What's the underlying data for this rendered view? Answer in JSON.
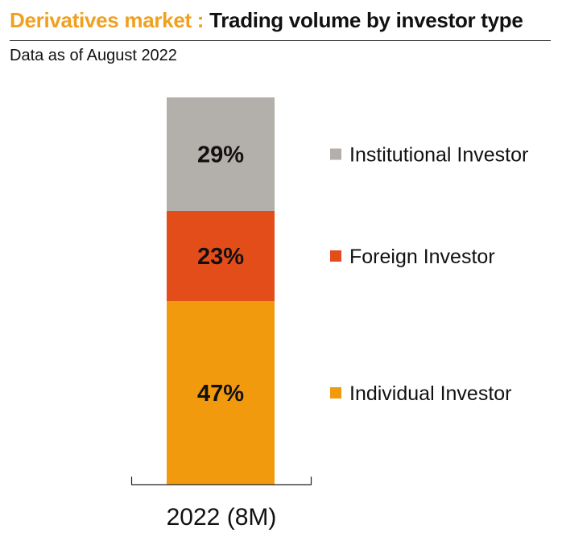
{
  "header": {
    "title_prefix": "Derivatives market : ",
    "title_main": "Trading volume by investor type",
    "subtitle": "Data as of August 2022"
  },
  "colors": {
    "title_accent": "#f0a01e",
    "institutional": "#b3afaa",
    "foreign": "#e34d19",
    "individual": "#f19a0e"
  },
  "chart_data": {
    "type": "bar",
    "stacked": true,
    "percent_stacked": true,
    "categories": [
      "2022 (8M)"
    ],
    "series": [
      {
        "name": "Individual Investor",
        "values": [
          47
        ],
        "label": "47%",
        "color": "#f19a0e"
      },
      {
        "name": "Foreign Investor",
        "values": [
          23
        ],
        "label": "23%",
        "color": "#e34d19"
      },
      {
        "name": "Institutional Investor",
        "values": [
          29
        ],
        "label": "29%",
        "color": "#b3afaa"
      }
    ],
    "legend_order": [
      "Institutional Investor",
      "Foreign Investor",
      "Individual Investor"
    ],
    "title": "Derivatives market : Trading volume by investor type",
    "subtitle": "Data as of August 2022",
    "xlabel": "",
    "ylabel": "",
    "ylim": [
      0,
      100
    ],
    "grid": false,
    "legend_position": "right"
  }
}
